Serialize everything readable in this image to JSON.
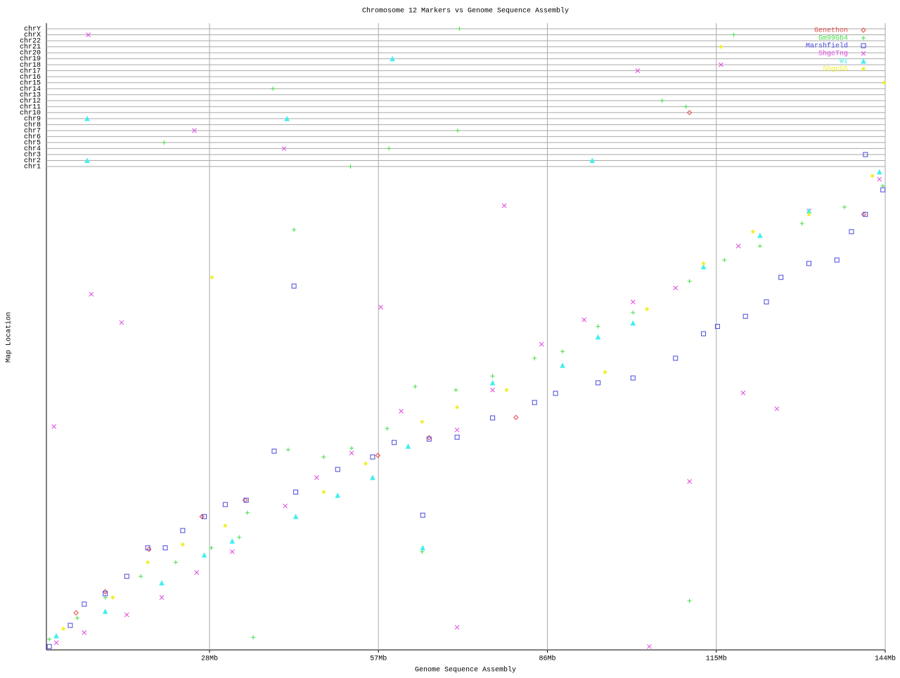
{
  "chart_data": {
    "type": "scatter",
    "title": "Chromosome 12 Markers vs Genome Sequence Assembly",
    "x_label": "Genome Sequence Assembly",
    "y_label": "Map Location",
    "xlim": [
      0,
      144
    ],
    "xticks": [
      {
        "value": 28,
        "label": "28Mb"
      },
      {
        "value": 57,
        "label": "57Mb"
      },
      {
        "value": 86,
        "label": "86Mb"
      },
      {
        "value": 115,
        "label": "115Mb"
      },
      {
        "value": 144,
        "label": "144Mb"
      }
    ],
    "ylim": [
      0,
      100
    ],
    "grid": true,
    "legend": "top-right",
    "rows": [
      "chrY",
      "chrX",
      "chr22",
      "chr21",
      "chr20",
      "chr19",
      "chr18",
      "chr17",
      "chr16",
      "chr15",
      "chr14",
      "chr13",
      "chr12",
      "chr11",
      "chr10",
      "chr9",
      "chr8",
      "chr7",
      "chr6",
      "chr5",
      "chr4",
      "chr3",
      "chr2",
      "chr1"
    ],
    "series": [
      {
        "name": "Genethon",
        "color": "#e04848",
        "marker": "diamond",
        "x": [
          5.1,
          10.1,
          17.6,
          26.7,
          34.1,
          56.9,
          65.7,
          80.6,
          140.3
        ],
        "y": [
          7.7,
          12.1,
          20.9,
          27.7,
          31.1,
          40.4,
          44.1,
          48.3,
          90.5
        ],
        "other_x": [
          110.4
        ],
        "other_chr": [
          "chr10"
        ]
      },
      {
        "name": "Gm99Gb4",
        "color": "#44dd44",
        "marker": "plus",
        "x": [
          0.5,
          5.3,
          10.1,
          16.2,
          22.2,
          28.3,
          33.1,
          34.5,
          41.5,
          47.6,
          52.4,
          58.5,
          63.3,
          70.3,
          76.6,
          83.8,
          88.6,
          94.7,
          100.7,
          110.4,
          116.4,
          122.5,
          129.7,
          137,
          143.6,
          42.5,
          64.5,
          110.4,
          35.5
        ],
        "y": [
          2.2,
          6.6,
          10.9,
          15.3,
          18.2,
          21.2,
          23.4,
          28.5,
          41.6,
          40.1,
          41.9,
          46,
          54.7,
          54,
          56.9,
          60.6,
          62,
          67.2,
          70.1,
          76.6,
          81,
          83.9,
          88.6,
          92,
          96.4,
          87.3,
          20.4,
          10.2,
          2.6
        ],
        "other_x": [
          70.9,
          118,
          38.9,
          105.7,
          109.8,
          70.6,
          20.2,
          58.8,
          52.2
        ],
        "other_chr": [
          "chrY",
          "chrX",
          "chr14",
          "chr12",
          "chr11",
          "chr7",
          "chr5",
          "chr4",
          "chr1"
        ]
      },
      {
        "name": "Marshfield",
        "color": "#4848dd",
        "marker": "square",
        "x": [
          0.5,
          4.1,
          6.5,
          10.1,
          13.8,
          17.4,
          20.4,
          23.4,
          27.1,
          30.7,
          34.3,
          39.1,
          42.8,
          50,
          56,
          59.7,
          65.7,
          70.5,
          76.6,
          83.8,
          87.4,
          94.7,
          100.7,
          108,
          112.8,
          115.2,
          120,
          123.6,
          126.1,
          130.9,
          135.7,
          138.2,
          140.6,
          143.6,
          42.5,
          64.6
        ],
        "y": [
          0.7,
          5.1,
          9.5,
          11.7,
          15.3,
          21.2,
          21.2,
          24.8,
          27.7,
          30.2,
          31.1,
          41.3,
          32.8,
          37.5,
          40.1,
          43.1,
          43.8,
          44.2,
          48.2,
          51.4,
          53.3,
          55.5,
          56.5,
          60.6,
          65.7,
          67.2,
          69.3,
          72.3,
          77.4,
          80.3,
          81,
          86.9,
          90.5,
          95.6,
          75.6,
          28
        ],
        "other_x": [
          140.6
        ],
        "other_chr": [
          "chr3"
        ]
      },
      {
        "name": "ShgcTng",
        "color": "#e048e0",
        "marker": "cross",
        "x": [
          1.7,
          6.5,
          13.8,
          19.8,
          25.8,
          31.9,
          41,
          46.4,
          52.4,
          60.9,
          70.5,
          76.6,
          85,
          92.3,
          100.7,
          108,
          118.8,
          130.9,
          143,
          1.3,
          7.7,
          12.9,
          57.4,
          78.6,
          125.4,
          110.4,
          70.5,
          103.5,
          119.6
        ],
        "y": [
          1.5,
          3.6,
          7.3,
          10.9,
          16.1,
          20.4,
          29.9,
          35.8,
          40.9,
          49.6,
          45.7,
          54,
          63.5,
          68.6,
          72.3,
          75.2,
          83.9,
          91.2,
          97.8,
          46.4,
          73.9,
          68,
          71.2,
          92.3,
          50.1,
          35,
          4.7,
          0.7,
          53.4
        ],
        "other_x": [
          7.2,
          101.5,
          25.4,
          40.8,
          115.8
        ],
        "other_chr": [
          "chrX",
          "chr17",
          "chr7",
          "chr4",
          "chr18"
        ]
      },
      {
        "name": "WI",
        "color": "#44eeee",
        "marker": "triangle",
        "x": [
          1.7,
          10.1,
          19.8,
          27.1,
          31.9,
          42.8,
          50,
          56,
          62.1,
          76.6,
          88.6,
          94.7,
          100.7,
          112.8,
          122.5,
          130.9,
          143,
          64.6
        ],
        "y": [
          2.9,
          8,
          13.9,
          19.7,
          22.6,
          27.7,
          32.1,
          35.8,
          42.3,
          55.5,
          59.1,
          65,
          67.9,
          79.6,
          86.1,
          91.2,
          99.3,
          21.2
        ],
        "other_x": [
          7,
          7,
          41.3,
          59.4,
          93.7
        ],
        "other_chr": [
          "chr9",
          "chr2",
          "chr9",
          "chr19",
          "chr2"
        ]
      },
      {
        "name": "ShgcGS",
        "color": "#eeee22",
        "marker": "star",
        "x": [
          2.9,
          11.4,
          17.4,
          23.4,
          30.7,
          47.6,
          54.8,
          64.5,
          70.5,
          79,
          95.9,
          103.1,
          112.8,
          121.3,
          130.9,
          141.8,
          28.4
        ],
        "y": [
          4.4,
          10.9,
          18.2,
          21.9,
          25.8,
          32.8,
          38.7,
          47.4,
          50.4,
          54,
          57.7,
          70.8,
          80.3,
          86.9,
          90.5,
          98.5,
          77.4
        ],
        "other_x": [
          115.8,
          143.8
        ],
        "other_chr": [
          "chr21",
          "chr15"
        ]
      }
    ]
  }
}
